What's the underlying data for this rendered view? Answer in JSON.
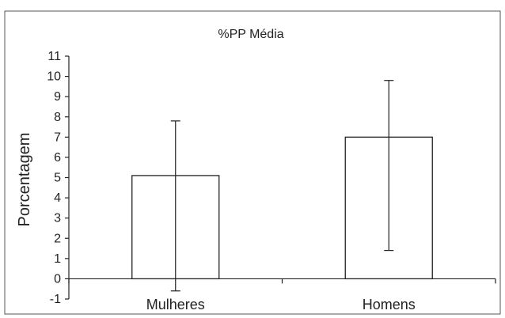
{
  "chart_data": {
    "type": "bar",
    "title": "%PP Média",
    "xlabel": "",
    "ylabel": "Porcentagem",
    "categories": [
      "Mulheres",
      "Homens"
    ],
    "values": [
      5.1,
      7.0
    ],
    "error_bars": {
      "lower": [
        -0.6,
        1.4
      ],
      "upper": [
        7.8,
        9.8
      ]
    },
    "ylim": [
      -1,
      11
    ],
    "yticks": [
      "-1",
      "0",
      "1",
      "2",
      "3",
      "4",
      "5",
      "6",
      "7",
      "8",
      "9",
      "10",
      "11"
    ],
    "grid": false,
    "legend": "none",
    "colors": {
      "bar_fill": "#ffffff",
      "bar_stroke": "#222222",
      "axis": "#222222",
      "border": "#555555"
    }
  }
}
